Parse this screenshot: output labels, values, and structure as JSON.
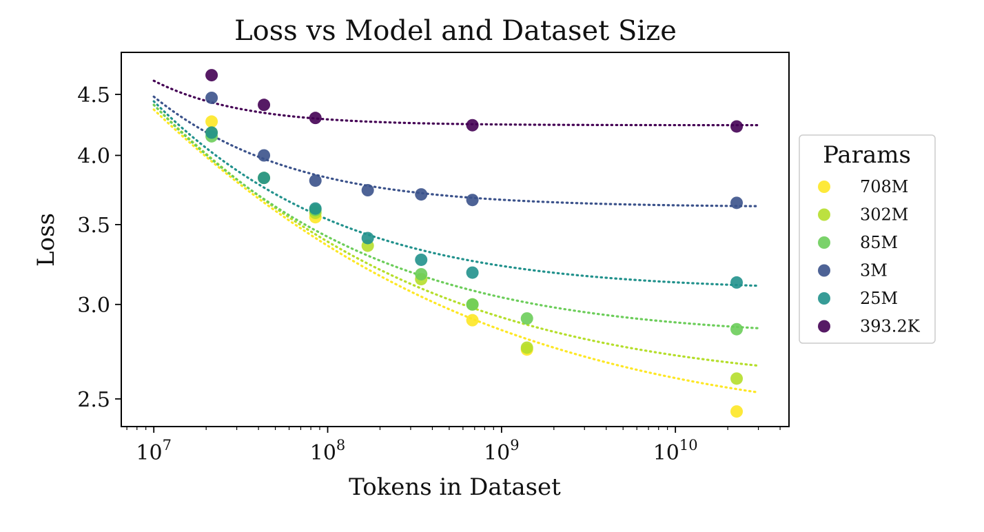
{
  "chart_data": {
    "type": "scatter",
    "title": "Loss vs Model and Dataset Size",
    "xlabel": "Tokens in Dataset",
    "ylabel": "Loss",
    "xscale": "log",
    "yscale": "log",
    "xlim": [
      6500000,
      45000000000
    ],
    "ylim": [
      2.37,
      4.88
    ],
    "grid": false,
    "legend": {
      "title": "Params",
      "placement": "right, outside plot"
    },
    "x_ticks": [
      {
        "value": 10000000,
        "base": "10",
        "exp": "7"
      },
      {
        "value": 100000000,
        "base": "10",
        "exp": "8"
      },
      {
        "value": 1000000000,
        "base": "10",
        "exp": "9"
      },
      {
        "value": 10000000000,
        "base": "10",
        "exp": "10"
      }
    ],
    "y_ticks": [
      {
        "value": 2.5,
        "label": "2.5"
      },
      {
        "value": 3.0,
        "label": "3.0"
      },
      {
        "value": 3.5,
        "label": "3.5"
      },
      {
        "value": 4.0,
        "label": "4.0"
      },
      {
        "value": 4.5,
        "label": "4.5"
      }
    ],
    "fit_x_range": [
      10000000,
      30000000000
    ],
    "series": [
      {
        "name": "708M",
        "color": "#fde725",
        "fit": {
          "L_inf": 2.35,
          "A": 2.02,
          "x0": 10000000,
          "b": 0.301
        },
        "points": [
          {
            "x": 21500000,
            "y": 4.27
          },
          {
            "x": 85000000,
            "y": 3.55
          },
          {
            "x": 680000000,
            "y": 2.91
          },
          {
            "x": 1400000000,
            "y": 2.75
          },
          {
            "x": 22500000000,
            "y": 2.44
          }
        ]
      },
      {
        "name": "302M",
        "color": "#b5de2b",
        "fit": {
          "L_inf": 2.55,
          "A": 1.86,
          "x0": 10000000,
          "b": 0.347
        },
        "points": [
          {
            "x": 21500000,
            "y": 4.18
          },
          {
            "x": 43000000,
            "y": 3.83
          },
          {
            "x": 85000000,
            "y": 3.58
          },
          {
            "x": 170000000,
            "y": 3.36
          },
          {
            "x": 345000000,
            "y": 3.15
          },
          {
            "x": 680000000,
            "y": 3.0
          },
          {
            "x": 1400000000,
            "y": 2.76
          },
          {
            "x": 22500000000,
            "y": 2.6
          }
        ]
      },
      {
        "name": "85M",
        "color": "#6ccd5a",
        "fit": {
          "L_inf": 2.81,
          "A": 1.6,
          "x0": 10000000,
          "b": 0.42
        },
        "points": [
          {
            "x": 21500000,
            "y": 4.15
          },
          {
            "x": 85000000,
            "y": 3.6
          },
          {
            "x": 345000000,
            "y": 3.18
          },
          {
            "x": 680000000,
            "y": 3.0
          },
          {
            "x": 1400000000,
            "y": 2.92
          },
          {
            "x": 22500000000,
            "y": 2.86
          }
        ]
      },
      {
        "name": "3M",
        "color": "#3b528b",
        "fit": {
          "L_inf": 3.62,
          "A": 0.86,
          "x0": 10000000,
          "b": 0.61
        },
        "points": [
          {
            "x": 21500000,
            "y": 4.47
          },
          {
            "x": 43000000,
            "y": 4.0
          },
          {
            "x": 85000000,
            "y": 3.81
          },
          {
            "x": 170000000,
            "y": 3.74
          },
          {
            "x": 345000000,
            "y": 3.71
          },
          {
            "x": 680000000,
            "y": 3.67
          },
          {
            "x": 22500000000,
            "y": 3.65
          }
        ]
      },
      {
        "name": "25M",
        "color": "#21918c",
        "fit": {
          "L_inf": 3.08,
          "A": 1.36,
          "x0": 10000000,
          "b": 0.476
        },
        "points": [
          {
            "x": 21500000,
            "y": 4.18
          },
          {
            "x": 43000000,
            "y": 3.83
          },
          {
            "x": 85000000,
            "y": 3.61
          },
          {
            "x": 170000000,
            "y": 3.41
          },
          {
            "x": 345000000,
            "y": 3.27
          },
          {
            "x": 680000000,
            "y": 3.19
          },
          {
            "x": 22500000000,
            "y": 3.13
          }
        ]
      },
      {
        "name": "393.2K",
        "color": "#440154",
        "fit": {
          "L_inf": 4.24,
          "A": 0.38,
          "x0": 10000000,
          "b": 0.9
        },
        "points": [
          {
            "x": 21500000,
            "y": 4.67
          },
          {
            "x": 43000000,
            "y": 4.41
          },
          {
            "x": 85000000,
            "y": 4.3
          },
          {
            "x": 680000000,
            "y": 4.24
          },
          {
            "x": 22500000000,
            "y": 4.23
          }
        ]
      }
    ]
  }
}
